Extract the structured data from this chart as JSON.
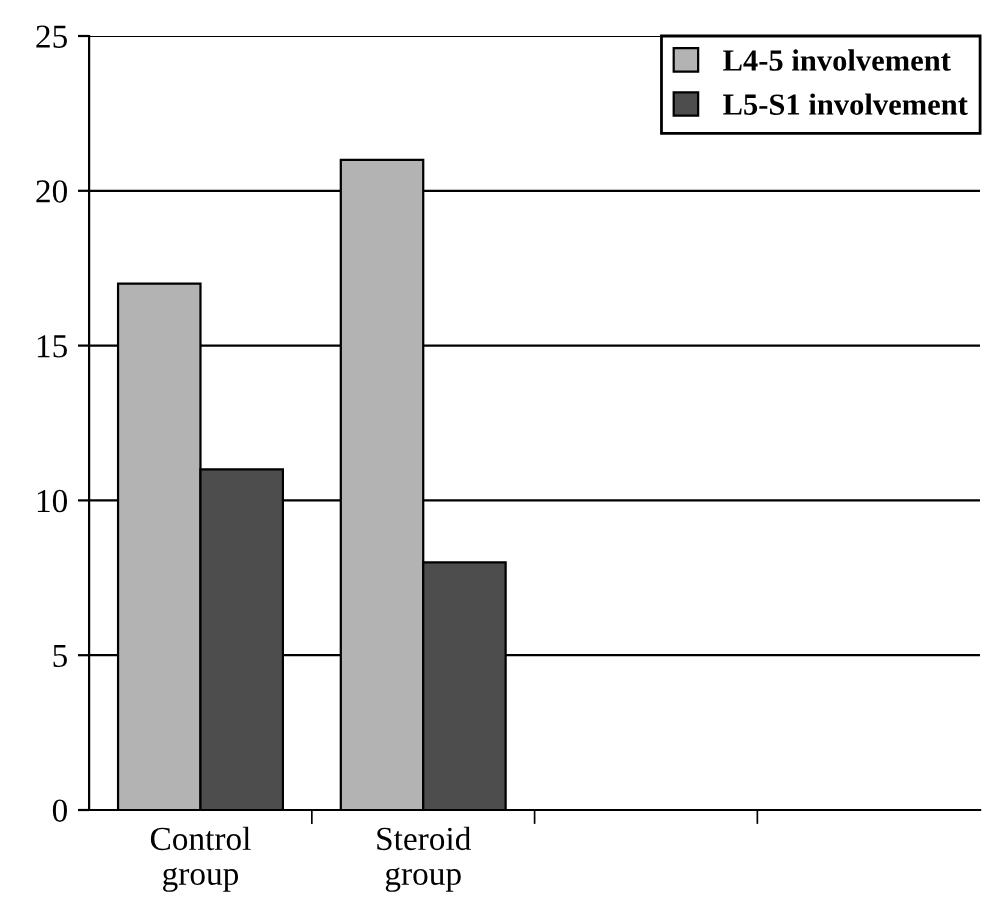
{
  "chart_data": {
    "type": "bar",
    "categories": [
      "Control\ngroup",
      "Steroid\ngroup",
      null,
      null
    ],
    "series": [
      {
        "name": "L4-5 involvement",
        "color": "#b3b3b3",
        "values": [
          17,
          21,
          null,
          null
        ]
      },
      {
        "name": "L5-S1 involvement",
        "color": "#4d4d4d",
        "values": [
          11,
          8,
          null,
          null
        ]
      }
    ],
    "ylim": [
      0,
      25
    ],
    "yticks": [
      0,
      5,
      10,
      15,
      20,
      25
    ],
    "grid": "y",
    "legend": "top right"
  }
}
